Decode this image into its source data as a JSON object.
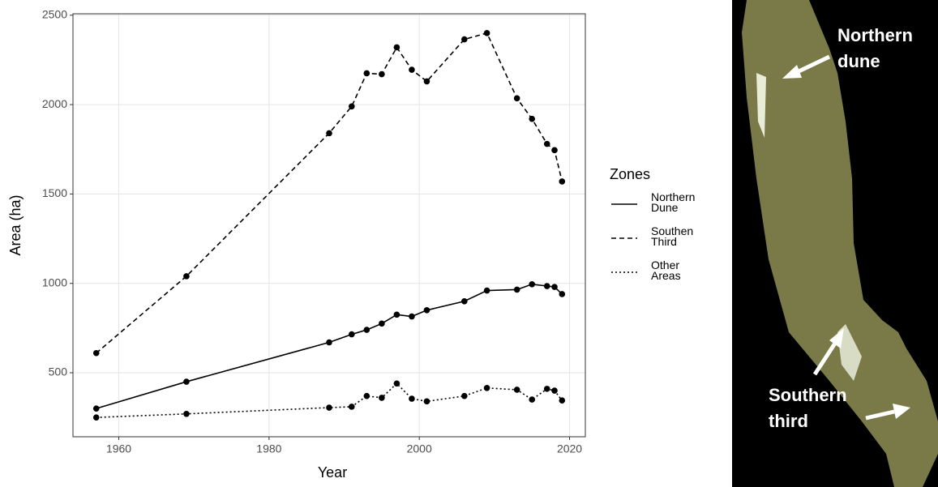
{
  "chart_data": {
    "type": "line",
    "x_label": "Year",
    "y_label": "Area (ha)",
    "x": [
      1957,
      1969,
      1988,
      1991,
      1993,
      1995,
      1997,
      1999,
      2001,
      2006,
      2009,
      2013,
      2015,
      2017,
      2018,
      2019
    ],
    "series": [
      {
        "name": "Northern Dune",
        "color": "#000000",
        "dash": "solid",
        "values": [
          300,
          450,
          670,
          715,
          740,
          775,
          825,
          815,
          850,
          900,
          960,
          965,
          995,
          985,
          980,
          940
        ]
      },
      {
        "name": "Southen Third",
        "color": "#000000",
        "dash": "dashed",
        "values": [
          610,
          1040,
          1840,
          1990,
          2175,
          2170,
          2320,
          2195,
          2130,
          2365,
          2400,
          2035,
          1920,
          1780,
          1745,
          1570
        ]
      },
      {
        "name": "Other Areas",
        "color": "#000000",
        "dash": "dotted",
        "values": [
          250,
          270,
          305,
          310,
          370,
          360,
          440,
          355,
          340,
          370,
          415,
          405,
          350,
          410,
          400,
          345
        ]
      }
    ],
    "xlim": [
      1953.9,
      2022.1
    ],
    "xticks": [
      1960,
      1980,
      2000,
      2020
    ],
    "ylim": [
      142,
      2508
    ],
    "yticks": [
      500,
      1000,
      1500,
      2000,
      2500
    ],
    "grid": true,
    "legend_title": "Zones",
    "legend_position": "right"
  },
  "image": {
    "labels": [
      "Northern dune",
      "Southern third"
    ]
  }
}
